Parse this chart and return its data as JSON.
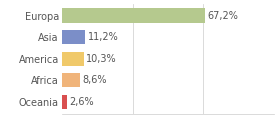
{
  "categories": [
    "Europa",
    "Asia",
    "America",
    "Africa",
    "Oceania"
  ],
  "values": [
    67.2,
    11.2,
    10.3,
    8.6,
    2.6
  ],
  "labels": [
    "67,2%",
    "11,2%",
    "10,3%",
    "8,6%",
    "2,6%"
  ],
  "bar_colors": [
    "#b5c98e",
    "#7b8ec8",
    "#f0c96a",
    "#f0b47a",
    "#d94f4f"
  ],
  "background_color": "#ffffff",
  "text_color": "#555555",
  "label_fontsize": 7.0,
  "tick_fontsize": 7.0,
  "xlim": [
    0,
    100
  ],
  "grid_ticks": [
    33.33,
    66.66,
    100
  ],
  "bar_height": 0.65
}
